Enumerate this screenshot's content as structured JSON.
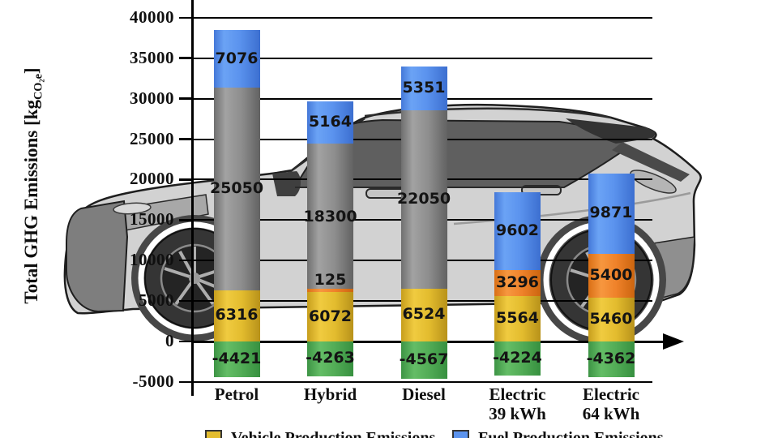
{
  "chart_data": {
    "type": "bar",
    "stacked": true,
    "ylabel_parts": {
      "main": "Total GHG Emissions [kg",
      "sub": "CO₂e",
      "end": "]"
    },
    "ylim": [
      -5000,
      42000
    ],
    "grid": "horizontal",
    "yticks": [
      {
        "value": 40000,
        "label": "40000"
      },
      {
        "value": 35000,
        "label": "35000"
      },
      {
        "value": 30000,
        "label": "30000"
      },
      {
        "value": 25000,
        "label": "25000"
      },
      {
        "value": 20000,
        "label": "20000"
      },
      {
        "value": 15000,
        "label": "15000"
      },
      {
        "value": 10000,
        "label": "10000"
      },
      {
        "value": 5000,
        "label": "5000"
      },
      {
        "value": 0,
        "label": "0"
      },
      {
        "value": -5000,
        "label": "-5000"
      }
    ],
    "categories": [
      {
        "lines": [
          "Petrol"
        ]
      },
      {
        "lines": [
          "Hybrid"
        ]
      },
      {
        "lines": [
          "Diesel"
        ]
      },
      {
        "lines": [
          "Electric",
          "39 kWh"
        ]
      },
      {
        "lines": [
          "Electric",
          "64 kWh"
        ]
      }
    ],
    "series": [
      {
        "name": "green-segment",
        "color": "#52ac56",
        "values": [
          -4421,
          -4263,
          -4567,
          -4224,
          -4362
        ]
      },
      {
        "name": "yellow-segment",
        "color": "#e3bc2e",
        "values": [
          6316,
          6072,
          6524,
          5564,
          5460
        ]
      },
      {
        "name": "orange-segment",
        "color": "#ef822a",
        "values": [
          0,
          125,
          0,
          3296,
          5400
        ]
      },
      {
        "name": "gray-segment",
        "color": "#8d8d8d",
        "values": [
          25050,
          18300,
          22050,
          0,
          0
        ]
      },
      {
        "name": "blue-segment",
        "color": "#5b93ee",
        "values": [
          7076,
          5164,
          5351,
          9602,
          9871
        ]
      }
    ],
    "legend": [
      {
        "label": "Vehicle Production Emissions",
        "color": "#e3bc2e"
      },
      {
        "label": "Fuel Production Emissions",
        "color": "#5b93ee"
      }
    ]
  }
}
